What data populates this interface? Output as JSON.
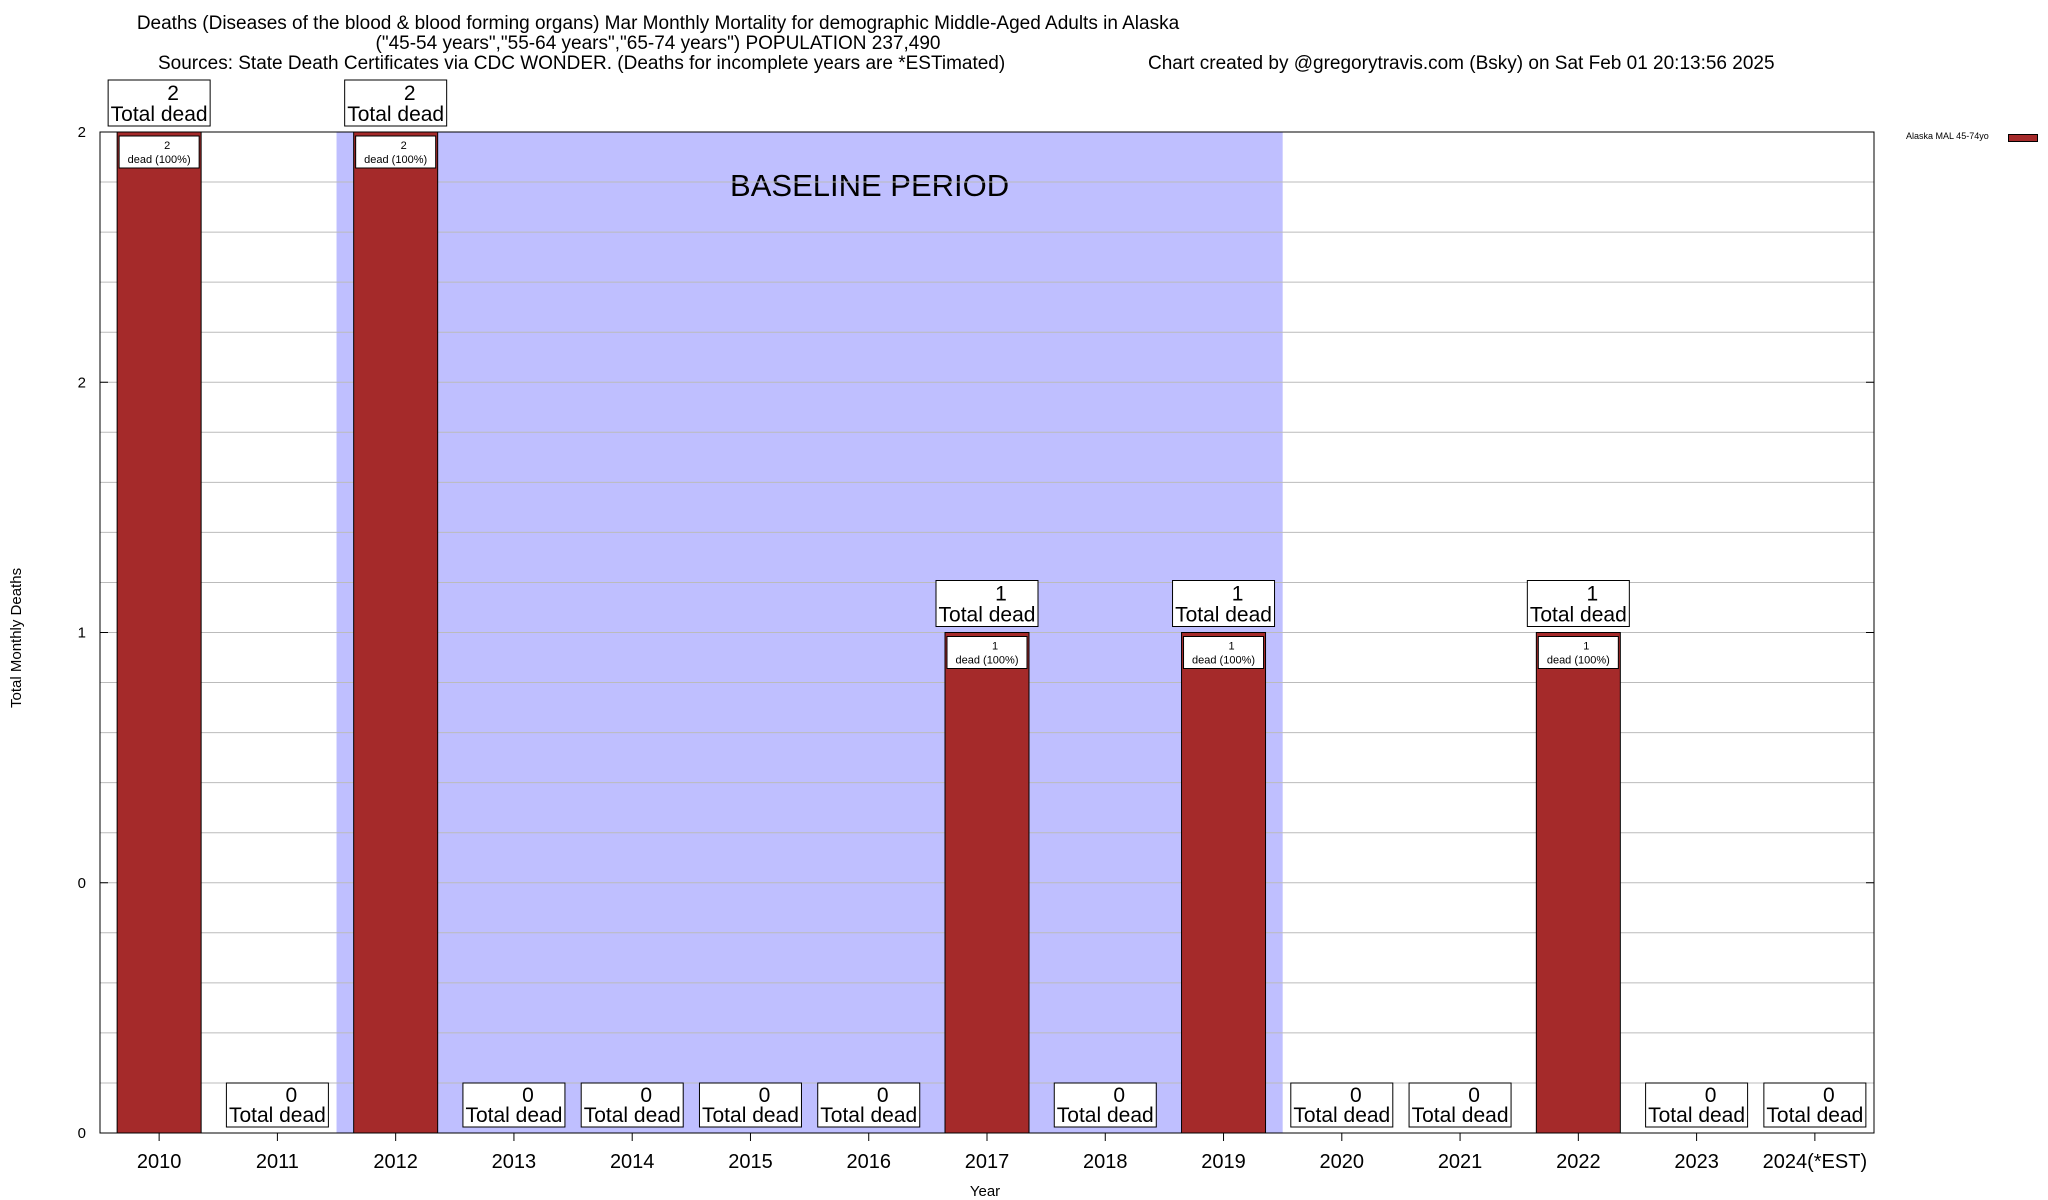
{
  "header": {
    "title_line1": "Deaths (Diseases of the blood & blood forming organs) Mar Monthly Mortality for demographic Middle-Aged Adults in Alaska",
    "title_line2": "(\"45-54 years\",\"55-64 years\",\"65-74 years\") POPULATION 237,490",
    "sources": "Sources: State Death Certificates via CDC WONDER. (Deaths for incomplete years are *ESTimated)",
    "credit": "Chart created by @gregorytravis.com (Bsky) on Sat Feb 01 20:13:56 2025"
  },
  "chart_data": {
    "type": "bar",
    "xlabel": "Year",
    "ylabel": "Total Monthly Deaths",
    "ylim": [
      0,
      2
    ],
    "y_tick_labels": [
      "0",
      "0",
      "1",
      "2",
      "2"
    ],
    "categories": [
      "2010",
      "2011",
      "2012",
      "2013",
      "2014",
      "2015",
      "2016",
      "2017",
      "2018",
      "2019",
      "2020",
      "2021",
      "2022",
      "2023",
      "2024(*EST)"
    ],
    "series": [
      {
        "name": "Alaska MAL 45-74yo",
        "color": "#a52a2a",
        "values": [
          2,
          0,
          2,
          0,
          0,
          0,
          0,
          1,
          0,
          1,
          0,
          0,
          1,
          0,
          0
        ]
      }
    ],
    "top_label_suffix": "Total dead",
    "inner_label_suffix": "dead (100%)",
    "baseline_period": {
      "label": "BASELINE PERIOD",
      "from": "2012",
      "to": "2019",
      "color": "#bfbfff"
    },
    "grid": true,
    "legend_position": "top-right"
  }
}
